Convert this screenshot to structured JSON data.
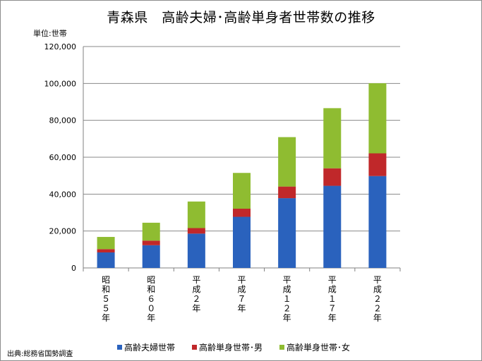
{
  "chart_data": {
    "type": "bar",
    "stacked": true,
    "title": "青森県　高齢夫婦･高齢単身者世帯数の推移",
    "ylabel": "単位:世帯",
    "source": "出典:総務省国勢調査",
    "categories": [
      "昭和５５年",
      "昭和６０年",
      "平成２年",
      "平成７年",
      "平成１２年",
      "平成１７年",
      "平成２２年"
    ],
    "category_chars": [
      [
        "昭",
        "和",
        "５",
        "５",
        "年"
      ],
      [
        "昭",
        "和",
        "６",
        "０",
        "年"
      ],
      [
        "平",
        "成",
        "２",
        "年"
      ],
      [
        "平",
        "成",
        "７",
        "年"
      ],
      [
        "平",
        "成",
        "１",
        "２",
        "年"
      ],
      [
        "平",
        "成",
        "１",
        "７",
        "年"
      ],
      [
        "平",
        "成",
        "２",
        "２",
        "年"
      ]
    ],
    "ylim": [
      0,
      120000
    ],
    "yticks": [
      0,
      20000,
      40000,
      60000,
      80000,
      100000,
      120000
    ],
    "ytick_labels": [
      "0",
      "20,000",
      "40,000",
      "60,000",
      "80,000",
      "100,000",
      "120,000"
    ],
    "grid": true,
    "legend_position": "bottom",
    "series": [
      {
        "name": "高齢夫婦世帯",
        "color": "#2a62bd",
        "values": [
          8400,
          12300,
          18600,
          27700,
          37800,
          44500,
          49800
        ]
      },
      {
        "name": "高齢単身世帯･男",
        "color": "#c0282a",
        "values": [
          1800,
          2500,
          3000,
          4400,
          6300,
          9500,
          12300
        ]
      },
      {
        "name": "高齢単身世帯･女",
        "color": "#8fbc31",
        "values": [
          6600,
          9700,
          14400,
          19400,
          26800,
          32600,
          38000
        ]
      }
    ]
  }
}
